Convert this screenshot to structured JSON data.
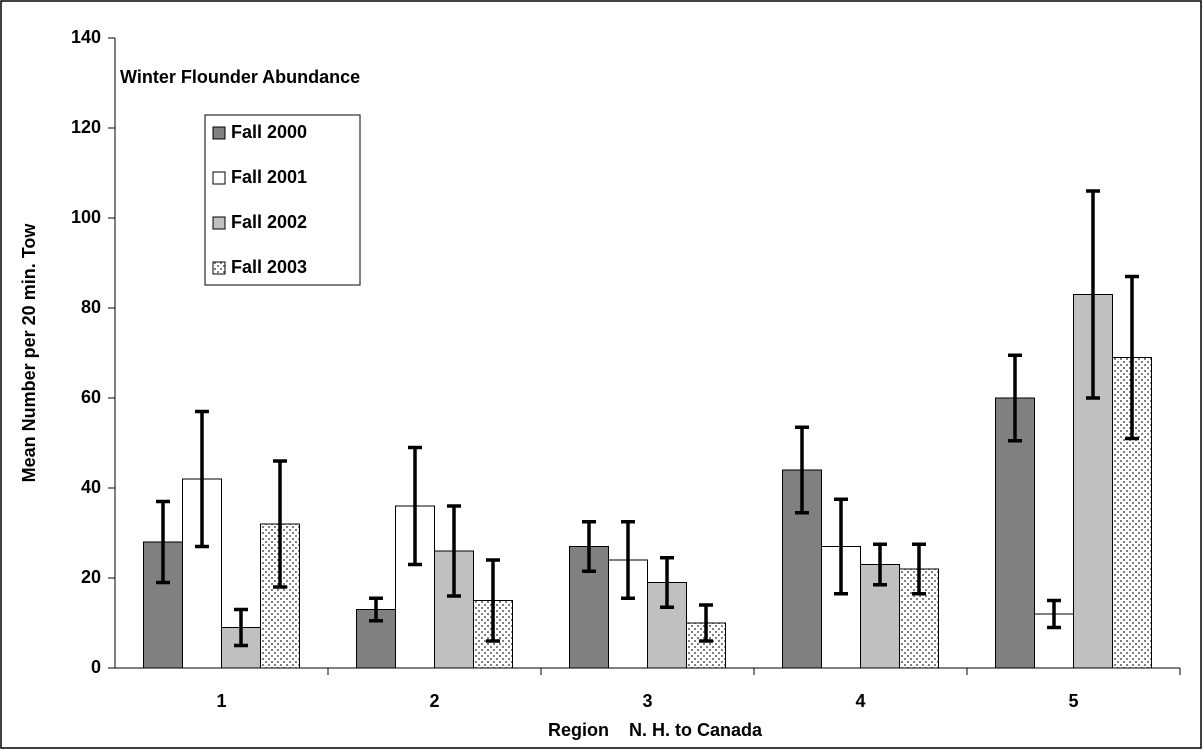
{
  "chart_data": {
    "type": "bar",
    "title": "Winter Flounder Abundance",
    "xlabel": "Region    N. H. to Canada",
    "ylabel": "Mean Number per 20 min. Tow",
    "categories": [
      "1",
      "2",
      "3",
      "4",
      "5"
    ],
    "series": [
      {
        "name": "Fall 2000",
        "color": "#808080",
        "values": [
          28,
          13,
          27,
          44,
          60
        ],
        "errors": [
          9,
          2.5,
          5.5,
          9.5,
          9.5
        ]
      },
      {
        "name": "Fall 2001",
        "color": "#ffffff",
        "values": [
          42,
          36,
          24,
          27,
          12
        ],
        "errors": [
          15,
          13,
          8.5,
          10.5,
          3
        ]
      },
      {
        "name": "Fall 2002",
        "color": "#c0c0c0",
        "values": [
          9,
          26,
          19,
          23,
          83
        ],
        "errors": [
          4,
          10,
          5.5,
          4.5,
          23
        ]
      },
      {
        "name": "Fall 2003",
        "color": "#ffffff",
        "pattern": "dots",
        "values": [
          32,
          15,
          10,
          22,
          69
        ],
        "errors": [
          14,
          9,
          4,
          5.5,
          18
        ]
      }
    ],
    "ylim": [
      0,
      140
    ],
    "yticks": [
      0,
      20,
      40,
      60,
      80,
      100,
      120,
      140
    ],
    "grid": false
  }
}
